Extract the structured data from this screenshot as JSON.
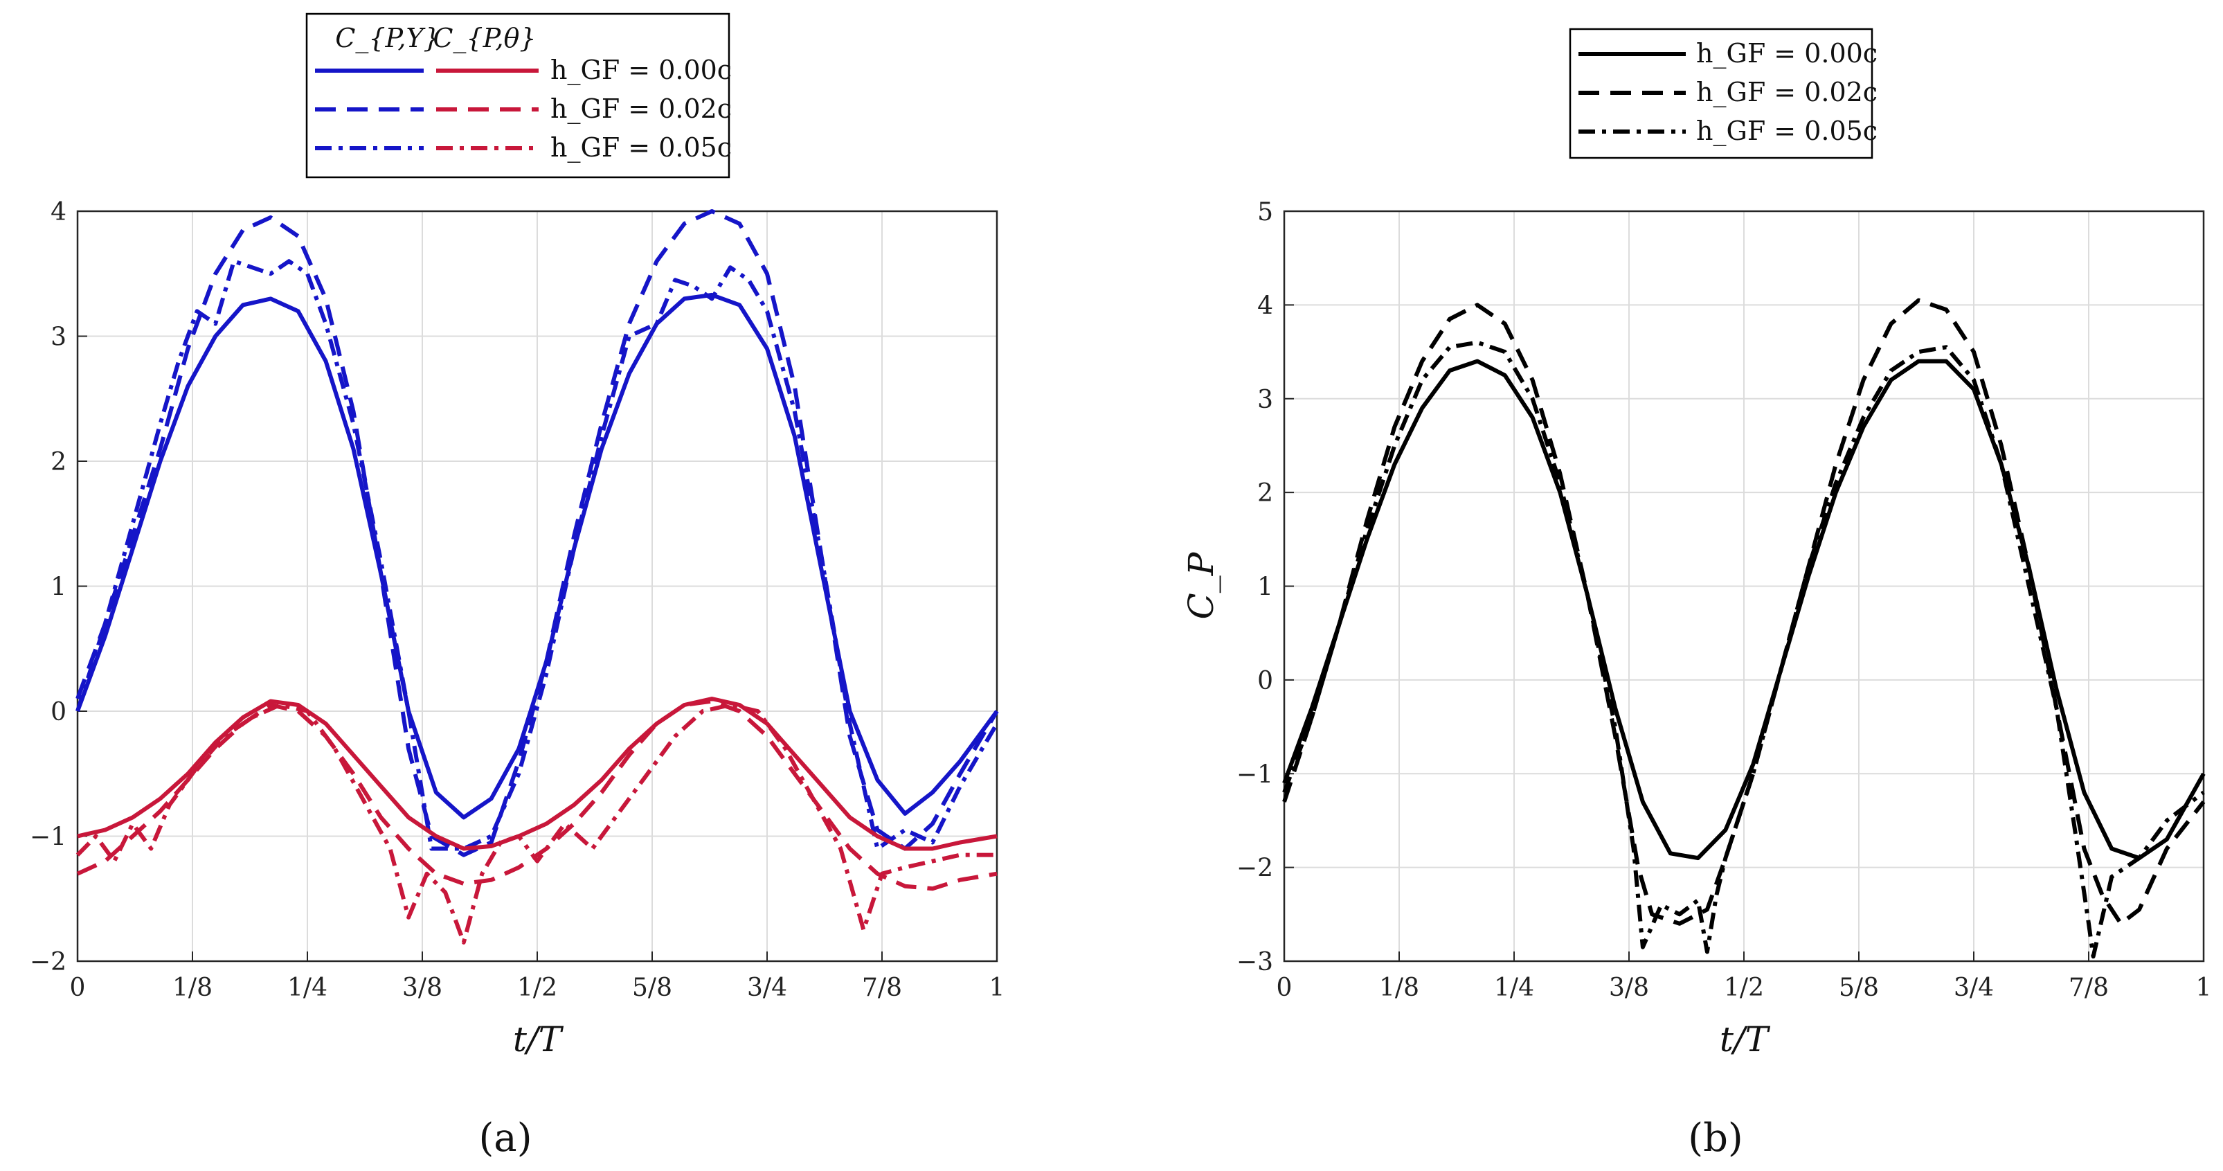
{
  "chart_data": [
    {
      "panel": "a",
      "panel_label": "(a)",
      "type": "line",
      "xlabel": "t/T",
      "ylabel": "",
      "xlim": [
        0,
        1
      ],
      "ylim": [
        -2,
        4
      ],
      "xticks": [
        0,
        0.125,
        0.25,
        0.375,
        0.5,
        0.625,
        0.75,
        0.875,
        1
      ],
      "xtick_labels": [
        "0",
        "1/8",
        "1/4",
        "3/8",
        "1/2",
        "5/8",
        "3/4",
        "7/8",
        "1"
      ],
      "yticks": [
        -2,
        -1,
        0,
        1,
        2,
        3,
        4
      ],
      "ytick_labels": [
        "−2",
        "−1",
        "0",
        "1",
        "2",
        "3",
        "4"
      ],
      "grid": true,
      "legend": {
        "placement": "top",
        "headers": [
          "C_{P,Y}",
          "C_{P,θ}"
        ],
        "entries": [
          "h_GF = 0.00c",
          "h_GF = 0.02c",
          "h_GF = 0.05c"
        ]
      },
      "series": [
        {
          "name": "C_P,Y h_GF = 0.00c",
          "color": "#1515c8",
          "dash": "solid",
          "x": [
            0,
            0.03,
            0.06,
            0.09,
            0.12,
            0.15,
            0.18,
            0.21,
            0.24,
            0.27,
            0.3,
            0.33,
            0.36,
            0.39,
            0.42,
            0.45,
            0.48,
            0.51,
            0.54,
            0.57,
            0.6,
            0.63,
            0.66,
            0.69,
            0.72,
            0.75,
            0.78,
            0.81,
            0.84,
            0.87,
            0.9,
            0.93,
            0.96,
            1.0
          ],
          "y": [
            0.0,
            0.6,
            1.3,
            2.0,
            2.6,
            3.0,
            3.25,
            3.3,
            3.2,
            2.8,
            2.1,
            1.1,
            0.0,
            -0.65,
            -0.85,
            -0.7,
            -0.3,
            0.4,
            1.3,
            2.1,
            2.7,
            3.1,
            3.3,
            3.33,
            3.25,
            2.9,
            2.2,
            1.1,
            0.0,
            -0.55,
            -0.82,
            -0.65,
            -0.4,
            0.0
          ]
        },
        {
          "name": "C_P,Y h_GF = 0.02c",
          "color": "#1515c8",
          "dash": "dashed",
          "x": [
            0,
            0.03,
            0.06,
            0.09,
            0.12,
            0.15,
            0.18,
            0.21,
            0.24,
            0.27,
            0.3,
            0.33,
            0.36,
            0.385,
            0.42,
            0.45,
            0.48,
            0.51,
            0.54,
            0.57,
            0.6,
            0.63,
            0.66,
            0.69,
            0.72,
            0.75,
            0.78,
            0.81,
            0.84,
            0.87,
            0.9,
            0.93,
            0.96,
            1.0
          ],
          "y": [
            0.1,
            0.7,
            1.4,
            2.1,
            2.9,
            3.5,
            3.85,
            3.95,
            3.8,
            3.3,
            2.4,
            1.1,
            -0.3,
            -1.0,
            -1.15,
            -1.05,
            -0.4,
            0.4,
            1.4,
            2.3,
            3.1,
            3.6,
            3.9,
            4.0,
            3.9,
            3.5,
            2.6,
            1.2,
            -0.2,
            -0.95,
            -1.1,
            -0.9,
            -0.5,
            0.0
          ]
        },
        {
          "name": "C_P,Y h_GF = 0.05c",
          "color": "#1515c8",
          "dash": "dashdot",
          "x": [
            0,
            0.03,
            0.06,
            0.09,
            0.11,
            0.13,
            0.15,
            0.17,
            0.19,
            0.21,
            0.23,
            0.25,
            0.27,
            0.3,
            0.33,
            0.36,
            0.385,
            0.42,
            0.45,
            0.48,
            0.51,
            0.54,
            0.57,
            0.6,
            0.63,
            0.65,
            0.67,
            0.69,
            0.71,
            0.73,
            0.75,
            0.78,
            0.81,
            0.84,
            0.87,
            0.9,
            0.93,
            0.96,
            1.0
          ],
          "y": [
            0.0,
            0.7,
            1.5,
            2.3,
            2.8,
            3.2,
            3.1,
            3.6,
            3.55,
            3.5,
            3.6,
            3.5,
            3.1,
            2.3,
            1.2,
            0.0,
            -1.1,
            -1.1,
            -1.0,
            -0.5,
            0.3,
            1.3,
            2.2,
            3.0,
            3.1,
            3.45,
            3.4,
            3.3,
            3.55,
            3.45,
            3.2,
            2.4,
            1.2,
            -0.1,
            -1.1,
            -0.95,
            -1.05,
            -0.6,
            -0.1
          ]
        },
        {
          "name": "C_P,θ h_GF = 0.00c",
          "color": "#c8173a",
          "dash": "solid",
          "x": [
            0,
            0.03,
            0.06,
            0.09,
            0.12,
            0.15,
            0.18,
            0.21,
            0.24,
            0.27,
            0.3,
            0.33,
            0.36,
            0.39,
            0.42,
            0.45,
            0.48,
            0.51,
            0.54,
            0.57,
            0.6,
            0.63,
            0.66,
            0.69,
            0.72,
            0.75,
            0.78,
            0.81,
            0.84,
            0.87,
            0.9,
            0.93,
            0.96,
            1.0
          ],
          "y": [
            -1.0,
            -0.95,
            -0.85,
            -0.7,
            -0.5,
            -0.25,
            -0.05,
            0.08,
            0.05,
            -0.1,
            -0.35,
            -0.6,
            -0.85,
            -1.0,
            -1.1,
            -1.08,
            -1.0,
            -0.9,
            -0.75,
            -0.55,
            -0.3,
            -0.1,
            0.05,
            0.1,
            0.05,
            -0.1,
            -0.35,
            -0.6,
            -0.85,
            -1.0,
            -1.1,
            -1.1,
            -1.05,
            -1.0
          ]
        },
        {
          "name": "C_P,θ h_GF = 0.02c",
          "color": "#c8173a",
          "dash": "dashed",
          "x": [
            0,
            0.03,
            0.06,
            0.09,
            0.12,
            0.15,
            0.18,
            0.21,
            0.24,
            0.27,
            0.3,
            0.33,
            0.36,
            0.39,
            0.42,
            0.45,
            0.48,
            0.51,
            0.54,
            0.57,
            0.6,
            0.63,
            0.66,
            0.69,
            0.72,
            0.75,
            0.78,
            0.81,
            0.84,
            0.87,
            0.9,
            0.93,
            0.96,
            1.0
          ],
          "y": [
            -1.3,
            -1.2,
            -1.0,
            -0.8,
            -0.55,
            -0.3,
            -0.1,
            0.05,
            0.0,
            -0.2,
            -0.5,
            -0.85,
            -1.1,
            -1.3,
            -1.38,
            -1.35,
            -1.25,
            -1.1,
            -0.9,
            -0.65,
            -0.35,
            -0.1,
            0.05,
            0.08,
            0.0,
            -0.2,
            -0.5,
            -0.8,
            -1.1,
            -1.3,
            -1.4,
            -1.42,
            -1.35,
            -1.3
          ]
        },
        {
          "name": "C_P,θ h_GF = 0.05c",
          "color": "#c8173a",
          "dash": "dashdot",
          "x": [
            0,
            0.02,
            0.04,
            0.06,
            0.08,
            0.1,
            0.13,
            0.16,
            0.19,
            0.22,
            0.25,
            0.28,
            0.31,
            0.34,
            0.36,
            0.38,
            0.4,
            0.42,
            0.44,
            0.46,
            0.48,
            0.5,
            0.53,
            0.56,
            0.59,
            0.62,
            0.65,
            0.68,
            0.71,
            0.74,
            0.77,
            0.8,
            0.83,
            0.855,
            0.875,
            0.9,
            0.93,
            0.96,
            1.0
          ],
          "y": [
            -1.15,
            -1.0,
            -1.2,
            -0.9,
            -1.1,
            -0.75,
            -0.45,
            -0.2,
            -0.05,
            0.05,
            0.0,
            -0.3,
            -0.7,
            -1.1,
            -1.65,
            -1.3,
            -1.45,
            -1.85,
            -1.3,
            -1.05,
            -1.0,
            -1.2,
            -0.9,
            -1.1,
            -0.8,
            -0.5,
            -0.2,
            0.0,
            0.05,
            0.0,
            -0.3,
            -0.7,
            -1.1,
            -1.75,
            -1.3,
            -1.25,
            -1.2,
            -1.15,
            -1.15
          ]
        }
      ]
    },
    {
      "panel": "b",
      "panel_label": "(b)",
      "type": "line",
      "xlabel": "t/T",
      "ylabel": "C_P",
      "xlim": [
        0,
        1
      ],
      "ylim": [
        -3,
        5
      ],
      "xticks": [
        0,
        0.125,
        0.25,
        0.375,
        0.5,
        0.625,
        0.75,
        0.875,
        1
      ],
      "xtick_labels": [
        "0",
        "1/8",
        "1/4",
        "3/8",
        "1/2",
        "5/8",
        "3/4",
        "7/8",
        "1"
      ],
      "yticks": [
        -3,
        -2,
        -1,
        0,
        1,
        2,
        3,
        4,
        5
      ],
      "ytick_labels": [
        "−3",
        "−2",
        "−1",
        "0",
        "1",
        "2",
        "3",
        "4",
        "5"
      ],
      "grid": true,
      "legend": {
        "placement": "top",
        "entries": [
          "h_GF = 0.00c",
          "h_GF = 0.02c",
          "h_GF = 0.05c"
        ]
      },
      "series": [
        {
          "name": "h_GF = 0.00c",
          "color": "#000000",
          "dash": "solid",
          "x": [
            0,
            0.03,
            0.06,
            0.09,
            0.12,
            0.15,
            0.18,
            0.21,
            0.24,
            0.27,
            0.3,
            0.33,
            0.36,
            0.39,
            0.42,
            0.45,
            0.48,
            0.51,
            0.54,
            0.57,
            0.6,
            0.63,
            0.66,
            0.69,
            0.72,
            0.75,
            0.78,
            0.81,
            0.84,
            0.87,
            0.9,
            0.93,
            0.96,
            1.0
          ],
          "y": [
            -1.1,
            -0.3,
            0.6,
            1.5,
            2.3,
            2.9,
            3.3,
            3.4,
            3.25,
            2.8,
            2.0,
            0.9,
            -0.3,
            -1.3,
            -1.85,
            -1.9,
            -1.6,
            -0.9,
            0.1,
            1.1,
            2.0,
            2.7,
            3.2,
            3.4,
            3.4,
            3.1,
            2.3,
            1.2,
            -0.1,
            -1.2,
            -1.8,
            -1.9,
            -1.7,
            -1.0
          ]
        },
        {
          "name": "h_GF = 0.02c",
          "color": "#000000",
          "dash": "dashed",
          "x": [
            0,
            0.03,
            0.06,
            0.09,
            0.12,
            0.15,
            0.18,
            0.21,
            0.24,
            0.27,
            0.3,
            0.33,
            0.36,
            0.385,
            0.4,
            0.43,
            0.46,
            0.48,
            0.51,
            0.54,
            0.57,
            0.6,
            0.63,
            0.66,
            0.69,
            0.72,
            0.75,
            0.78,
            0.81,
            0.84,
            0.87,
            0.89,
            0.91,
            0.93,
            0.96,
            1.0
          ],
          "y": [
            -1.3,
            -0.4,
            0.6,
            1.7,
            2.7,
            3.4,
            3.85,
            4.0,
            3.8,
            3.2,
            2.2,
            0.9,
            -0.6,
            -2.0,
            -2.5,
            -2.6,
            -2.45,
            -1.9,
            -1.0,
            0.1,
            1.2,
            2.3,
            3.2,
            3.8,
            4.05,
            3.95,
            3.5,
            2.5,
            1.2,
            -0.3,
            -1.8,
            -2.3,
            -2.6,
            -2.45,
            -1.8,
            -1.3
          ]
        },
        {
          "name": "h_GF = 0.05c",
          "color": "#000000",
          "dash": "dashdot",
          "x": [
            0,
            0.03,
            0.06,
            0.09,
            0.12,
            0.15,
            0.18,
            0.21,
            0.24,
            0.27,
            0.3,
            0.33,
            0.36,
            0.38,
            0.39,
            0.41,
            0.43,
            0.45,
            0.46,
            0.47,
            0.48,
            0.51,
            0.54,
            0.57,
            0.6,
            0.63,
            0.66,
            0.69,
            0.72,
            0.75,
            0.78,
            0.81,
            0.84,
            0.86,
            0.875,
            0.88,
            0.9,
            0.93,
            0.96,
            1.0
          ],
          "y": [
            -1.2,
            -0.4,
            0.6,
            1.6,
            2.5,
            3.2,
            3.55,
            3.6,
            3.5,
            3.0,
            2.1,
            0.9,
            -0.5,
            -1.8,
            -2.85,
            -2.4,
            -2.5,
            -2.35,
            -2.9,
            -2.3,
            -1.9,
            -1.0,
            0.1,
            1.2,
            2.1,
            2.8,
            3.3,
            3.5,
            3.55,
            3.2,
            2.3,
            1.0,
            -0.3,
            -1.6,
            -2.6,
            -2.95,
            -2.1,
            -1.9,
            -1.5,
            -1.2
          ]
        }
      ]
    }
  ]
}
